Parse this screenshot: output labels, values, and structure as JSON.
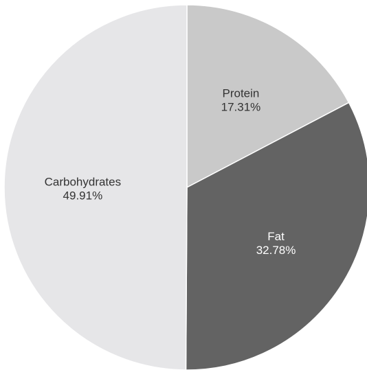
{
  "chart_data": {
    "type": "pie",
    "title": "",
    "start_angle_deg": 0,
    "direction": "clockwise",
    "slices": [
      {
        "label": "Protein",
        "value_text": "17.31%",
        "value": 17.31,
        "color": "#c9c9c9",
        "text_color": "#333333"
      },
      {
        "label": "Fat",
        "value_text": "32.78%",
        "value": 32.78,
        "color": "#636363",
        "text_color": "#ffffff"
      },
      {
        "label": "Carbohydrates",
        "value_text": "49.91%",
        "value": 49.91,
        "color": "#e6e6e8",
        "text_color": "#333333"
      }
    ]
  }
}
